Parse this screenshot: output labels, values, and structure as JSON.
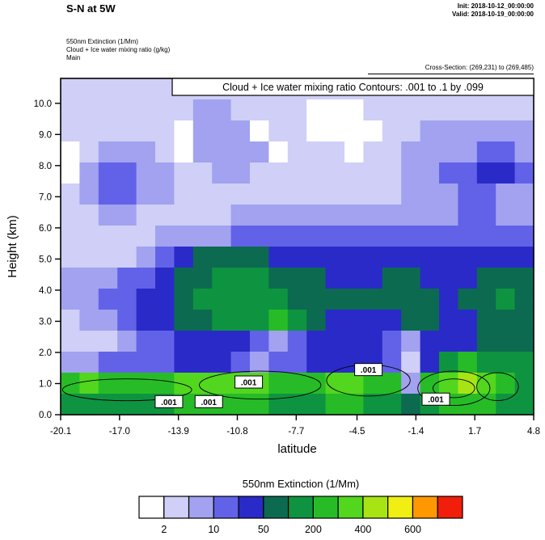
{
  "header": {
    "title": "S-N at 5W",
    "init_label": "Init: 2018-10-12_00:00:00",
    "valid_label": "Valid: 2018-10-19_00:00:00",
    "field_line1": "550nm Extinction  (1/Mm)",
    "field_line2": "Cloud + Ice water mixing ratio   (g/kg)",
    "field_line3": "Main",
    "cross_section": "Cross-Section: (269,231) to (269,485)"
  },
  "colorbar": {
    "title": "550nm Extinction  (1/Mm)",
    "labels": [
      "2",
      "10",
      "50",
      "200",
      "400",
      "600"
    ],
    "label_boundaries": [
      1,
      3,
      5,
      7,
      9,
      11
    ],
    "n_cells": 13
  },
  "chart_data": {
    "type": "heatmap",
    "title": "Cloud + Ice water mixing ratio Contours: .001 to .1 by .099",
    "xlabel": "latitude",
    "ylabel": "Height (km)",
    "xlim": [
      -20.1,
      4.8
    ],
    "ylim": [
      0,
      10.8
    ],
    "x_ticks": [
      -20.1,
      -17.0,
      -13.9,
      -10.8,
      -7.7,
      -4.5,
      -1.4,
      1.7,
      4.8
    ],
    "x_tick_labels": [
      "-20.1",
      "-17.0",
      "-13.9",
      "-10.8",
      "-7.7",
      "-4.5",
      "-1.4",
      "1.7",
      "4.8"
    ],
    "y_ticks": [
      0,
      1,
      2,
      3,
      4,
      5,
      6,
      7,
      8,
      9,
      10
    ],
    "y_tick_labels": [
      "0.0",
      "1.0",
      "2.0",
      "3.0",
      "4.0",
      "5.0",
      "6.0",
      "7.0",
      "8.0",
      "9.0",
      "10.0"
    ],
    "legend_title": "550nm Extinction  (1/Mm)",
    "legend_boundary_labels": [
      "2",
      "10",
      "50",
      "200",
      "400",
      "600"
    ],
    "level_colors": [
      "#ffffff",
      "#cfcff7",
      "#a2a2f0",
      "#6262e8",
      "#2a2ac9",
      "#0c6a50",
      "#0e9440",
      "#27bc27",
      "#52d61e",
      "#a8e414",
      "#f0ee12",
      "#ff9800",
      "#f01e0a"
    ],
    "extinction_grid": {
      "comment_free_note": "levels are color-bin indices into level_colors, rows top(10.8km) to bottom(0km), cols lat -20.1 to 4.8",
      "lat_start": -20.1,
      "lat_step": 0.996,
      "ncols": 25,
      "h_top": 10.8,
      "h_step": 0.675,
      "nrows": 16,
      "levels": [
        [
          1,
          1,
          1,
          1,
          1,
          1,
          1,
          1,
          1,
          1,
          1,
          1,
          1,
          1,
          1,
          1,
          1,
          1,
          1,
          1,
          1,
          1,
          1,
          1,
          1
        ],
        [
          1,
          1,
          1,
          1,
          1,
          1,
          1,
          2,
          2,
          1,
          1,
          1,
          1,
          0,
          0,
          0,
          1,
          1,
          1,
          1,
          1,
          1,
          1,
          1,
          1
        ],
        [
          1,
          1,
          1,
          1,
          1,
          1,
          0,
          2,
          2,
          2,
          0,
          1,
          1,
          0,
          0,
          0,
          0,
          1,
          1,
          2,
          2,
          2,
          2,
          2,
          2
        ],
        [
          0,
          1,
          2,
          2,
          2,
          1,
          0,
          2,
          2,
          2,
          2,
          0,
          1,
          1,
          1,
          0,
          1,
          1,
          2,
          2,
          2,
          2,
          3,
          3,
          2
        ],
        [
          0,
          2,
          3,
          3,
          2,
          2,
          1,
          1,
          2,
          2,
          1,
          1,
          1,
          1,
          1,
          1,
          1,
          1,
          2,
          2,
          3,
          3,
          4,
          4,
          3
        ],
        [
          1,
          2,
          3,
          3,
          2,
          2,
          1,
          1,
          1,
          1,
          1,
          1,
          1,
          1,
          1,
          1,
          1,
          1,
          2,
          2,
          2,
          3,
          3,
          2,
          2
        ],
        [
          1,
          1,
          2,
          2,
          1,
          1,
          1,
          1,
          1,
          2,
          2,
          2,
          2,
          2,
          2,
          2,
          2,
          2,
          2,
          2,
          2,
          3,
          3,
          2,
          2
        ],
        [
          1,
          1,
          1,
          1,
          1,
          2,
          2,
          2,
          2,
          3,
          3,
          3,
          3,
          3,
          3,
          3,
          3,
          3,
          3,
          3,
          3,
          3,
          3,
          3,
          3
        ],
        [
          1,
          1,
          1,
          1,
          2,
          3,
          4,
          5,
          5,
          5,
          5,
          4,
          4,
          4,
          4,
          4,
          4,
          4,
          4,
          4,
          4,
          4,
          4,
          4,
          4
        ],
        [
          2,
          2,
          2,
          3,
          3,
          4,
          5,
          5,
          6,
          6,
          6,
          5,
          5,
          5,
          4,
          4,
          4,
          5,
          5,
          4,
          4,
          4,
          5,
          5,
          5
        ],
        [
          2,
          2,
          3,
          3,
          4,
          4,
          5,
          6,
          6,
          6,
          6,
          6,
          5,
          5,
          5,
          5,
          5,
          5,
          5,
          5,
          4,
          5,
          5,
          6,
          5
        ],
        [
          1,
          2,
          2,
          3,
          4,
          4,
          5,
          5,
          6,
          6,
          6,
          7,
          6,
          5,
          4,
          4,
          4,
          4,
          5,
          5,
          4,
          4,
          5,
          5,
          5
        ],
        [
          1,
          1,
          1,
          2,
          3,
          3,
          4,
          4,
          4,
          4,
          3,
          2,
          3,
          4,
          4,
          4,
          4,
          3,
          2,
          4,
          4,
          4,
          5,
          5,
          5
        ],
        [
          2,
          2,
          3,
          3,
          3,
          3,
          4,
          4,
          4,
          3,
          2,
          3,
          3,
          4,
          4,
          4,
          4,
          3,
          1,
          4,
          6,
          7,
          6,
          6,
          6
        ],
        [
          7,
          8,
          7,
          7,
          7,
          7,
          8,
          8,
          8,
          8,
          8,
          7,
          7,
          7,
          8,
          8,
          7,
          7,
          2,
          7,
          8,
          9,
          8,
          7,
          6
        ],
        [
          6,
          6,
          6,
          6,
          6,
          6,
          7,
          7,
          7,
          7,
          7,
          6,
          6,
          6,
          7,
          7,
          6,
          6,
          5,
          6,
          7,
          7,
          7,
          6,
          6
        ]
      ]
    },
    "cloud_contour_labels": [
      {
        "lat": -14.4,
        "h": 0.42,
        "text": ".001"
      },
      {
        "lat": -12.3,
        "h": 0.42,
        "text": ".001"
      },
      {
        "lat": -10.2,
        "h": 1.05,
        "text": ".001"
      },
      {
        "lat": -3.9,
        "h": 1.45,
        "text": ".001"
      },
      {
        "lat": -0.35,
        "h": 0.5,
        "text": ".001"
      }
    ],
    "cloud_contour_outlines": [
      {
        "lat": -16.6,
        "h": 0.8,
        "rlat": 3.4,
        "rh": 0.35
      },
      {
        "lat": -9.6,
        "h": 0.95,
        "rlat": 3.2,
        "rh": 0.45
      },
      {
        "lat": -3.9,
        "h": 1.1,
        "rlat": 2.2,
        "rh": 0.5
      },
      {
        "lat": 0.6,
        "h": 0.85,
        "rlat": 1.9,
        "rh": 0.55
      },
      {
        "lat": 0.6,
        "h": 0.85,
        "rlat": 1.1,
        "rh": 0.3
      },
      {
        "lat": 2.9,
        "h": 0.9,
        "rlat": 1.1,
        "rh": 0.45
      }
    ]
  }
}
